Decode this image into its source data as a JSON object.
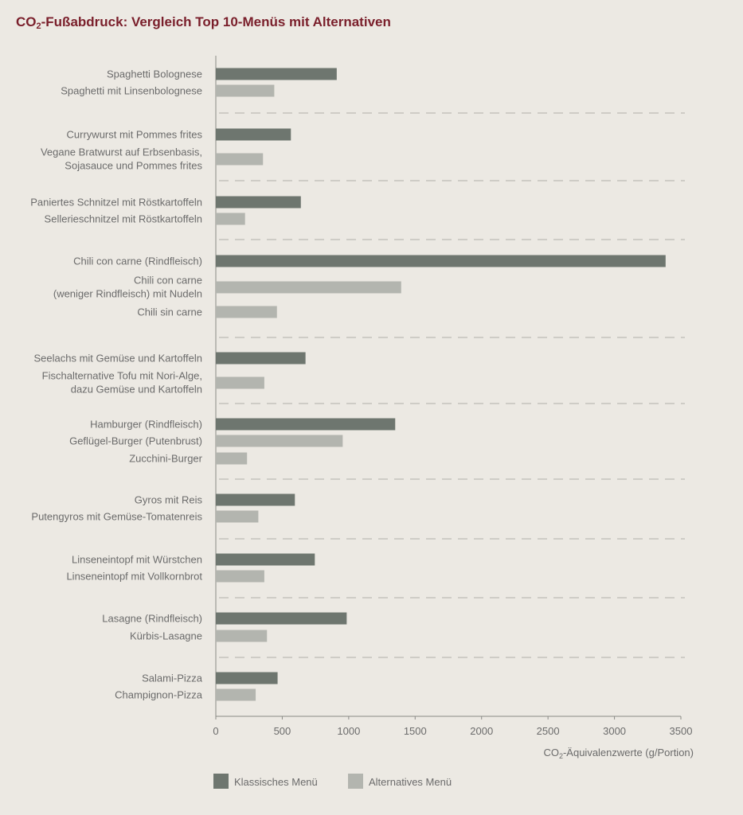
{
  "title": {
    "prefix": "CO",
    "subscript": "2",
    "suffix": "-Fußabdruck: Vergleich Top 10-Menüs mit Alternativen"
  },
  "colors": {
    "classic": "#6E766F",
    "alternative": "#B3B5AF",
    "title": "#7A1F2B",
    "background": "#ECE9E3",
    "text": "#6B6B6B",
    "separator": "#BDBAB4"
  },
  "chart_data": {
    "type": "bar",
    "orientation": "horizontal",
    "xlim": [
      0,
      3500
    ],
    "xticks": [
      0,
      500,
      1000,
      1500,
      2000,
      2500,
      3000,
      3500
    ],
    "xlabel": {
      "prefix": "CO",
      "subscript": "2",
      "suffix": "-Äquivalenzwerte (g/Portion)"
    },
    "legend": {
      "position": "bottom-left",
      "items": [
        {
          "key": "classic",
          "label": "Klassisches Menü"
        },
        {
          "key": "alternative",
          "label": "Alternatives Menü"
        }
      ]
    },
    "groups": [
      {
        "items": [
          {
            "label": [
              "Spaghetti Bolognese"
            ],
            "value": 910,
            "kind": "classic"
          },
          {
            "label": [
              "Spaghetti mit Linsenbolognese"
            ],
            "value": 440,
            "kind": "alternative"
          }
        ]
      },
      {
        "items": [
          {
            "label": [
              "Currywurst mit Pommes frites"
            ],
            "value": 565,
            "kind": "classic"
          },
          {
            "label": [
              "Vegane Bratwurst auf Erbsenbasis,",
              "Sojasauce und Pommes frites"
            ],
            "value": 355,
            "kind": "alternative"
          }
        ]
      },
      {
        "items": [
          {
            "label": [
              "Paniertes Schnitzel mit Röstkartoffeln"
            ],
            "value": 640,
            "kind": "classic"
          },
          {
            "label": [
              "Sellerieschnitzel mit Röstkartoffeln"
            ],
            "value": 220,
            "kind": "alternative"
          }
        ]
      },
      {
        "items": [
          {
            "label": [
              "Chili con carne (Rindfleisch)"
            ],
            "value": 3385,
            "kind": "classic"
          },
          {
            "label": [
              "Chili con carne ",
              "(weniger Rindfleisch) mit Nudeln"
            ],
            "value": 1395,
            "kind": "alternative"
          },
          {
            "label": [
              "Chili sin carne"
            ],
            "value": 460,
            "kind": "alternative"
          }
        ]
      },
      {
        "items": [
          {
            "label": [
              "Seelachs mit Gemüse und Kartoffeln"
            ],
            "value": 675,
            "kind": "classic"
          },
          {
            "label": [
              "Fischalternative Tofu mit Nori-Alge,",
              "dazu Gemüse und Kartoffeln"
            ],
            "value": 365,
            "kind": "alternative"
          }
        ]
      },
      {
        "items": [
          {
            "label": [
              "Hamburger (Rindfleisch)"
            ],
            "value": 1350,
            "kind": "classic"
          },
          {
            "label": [
              "Geflügel-Burger (Putenbrust)"
            ],
            "value": 955,
            "kind": "alternative"
          },
          {
            "label": [
              "Zucchini-Burger"
            ],
            "value": 235,
            "kind": "alternative"
          }
        ]
      },
      {
        "items": [
          {
            "label": [
              "Gyros mit Reis"
            ],
            "value": 595,
            "kind": "classic"
          },
          {
            "label": [
              "Putengyros mit Gemüse-Tomatenreis"
            ],
            "value": 320,
            "kind": "alternative"
          }
        ]
      },
      {
        "items": [
          {
            "label": [
              "Linseneintopf mit Würstchen"
            ],
            "value": 745,
            "kind": "classic"
          },
          {
            "label": [
              "Linseneintopf mit Vollkornbrot"
            ],
            "value": 365,
            "kind": "alternative"
          }
        ]
      },
      {
        "items": [
          {
            "label": [
              "Lasagne (Rindfleisch)"
            ],
            "value": 985,
            "kind": "classic"
          },
          {
            "label": [
              "Kürbis-Lasagne"
            ],
            "value": 385,
            "kind": "alternative"
          }
        ]
      },
      {
        "items": [
          {
            "label": [
              "Salami-Pizza"
            ],
            "value": 465,
            "kind": "classic"
          },
          {
            "label": [
              "Champignon-Pizza"
            ],
            "value": 300,
            "kind": "alternative"
          }
        ]
      }
    ]
  }
}
